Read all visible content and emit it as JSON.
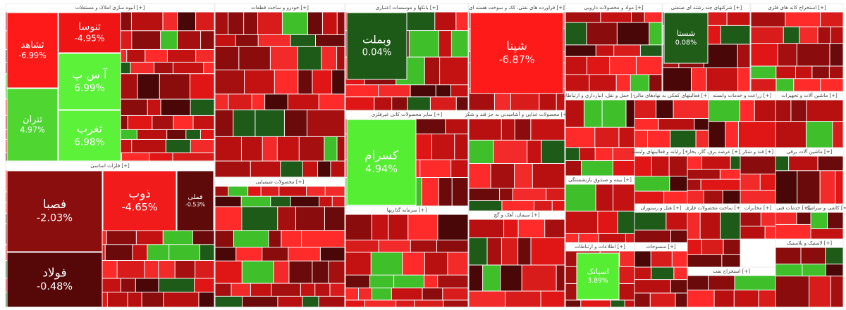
{
  "sectors": [
    {
      "title": "انبوه سازی املاک و مستغلات [+]",
      "tiles": [
        {
          "name": "ثشاهد",
          "change": "-6.99%",
          "color": "#ff1a1a"
        },
        {
          "name": "ثنوسا",
          "change": "-4.95%",
          "color": "#f01515"
        },
        {
          "name": "آ س پ",
          "change": "6.99%",
          "color": "#5cf23a"
        },
        {
          "name": "ثتران",
          "change": "4.97%",
          "color": "#4fd631"
        },
        {
          "name": "ثغرب",
          "change": "6.98%",
          "color": "#5cf23a"
        }
      ]
    },
    {
      "title": "فلزات اساسی [+]",
      "tiles": [
        {
          "name": "فصبا",
          "change": "-2.03%",
          "color": "#8b0e0e"
        },
        {
          "name": "فولاد",
          "change": "-0.48%",
          "color": "#560808"
        },
        {
          "name": "ذوب",
          "change": "-4.65%",
          "color": "#f21b1b"
        },
        {
          "name": "فملی",
          "change": "-0.53%",
          "color": "#5e0a0a"
        }
      ]
    },
    {
      "title": "خودرو و ساخت قطعات [+]",
      "tiles": []
    },
    {
      "title": "محصولات شیمیایی [+]",
      "tiles": []
    },
    {
      "title": "بانکها و موسسات اعتباری [+]",
      "tiles": [
        {
          "name": "وبملت",
          "change": "0.04%",
          "color": "#1d5a17"
        }
      ]
    },
    {
      "title": "سایر محصولات کانی غیرفلزی [+]",
      "tiles": [
        {
          "name": "کسرام",
          "change": "4.94%",
          "color": "#55ee33"
        }
      ]
    },
    {
      "title": "سرمایه گذاریها [+]",
      "tiles": []
    },
    {
      "title": "فراورده های نفتی، کک و سوخت هسته ای [+]",
      "tiles": [
        {
          "name": "شپنا",
          "change": "-6.87%",
          "color": "#ff1a1a"
        }
      ]
    },
    {
      "title": "محصولات غذایی و آشامیدنی به جز قند و شکر [+]",
      "tiles": []
    },
    {
      "title": "سیمان، آهک و گچ [+]",
      "tiles": []
    },
    {
      "title": "مواد و محصولات دارویی [+]",
      "tiles": []
    },
    {
      "title": "شرکتهای چند رشته ای صنعتی [+]",
      "tiles": [
        {
          "name": "شستا",
          "change": "0.08%",
          "color": "#1f5d19"
        }
      ]
    },
    {
      "title": "استخراج کانه های فلزی [+]",
      "tiles": []
    },
    {
      "title": "حمل و نقل، انبارداری و ارتباطات [+]",
      "tiles": []
    },
    {
      "title": "فعالیتهای کمکی به نهادهای مالی [+]",
      "tiles": []
    },
    {
      "title": "زراعت و خدمات وابسته [+]",
      "tiles": []
    },
    {
      "title": "ماشین آلات و تجهیزات [+]",
      "tiles": []
    },
    {
      "title": "بیمه و صندوق بازنشستگی [+]",
      "tiles": []
    },
    {
      "title": "اطلاعات و ارتباطات [+]",
      "tiles": [
        {
          "name": "اسیاتک",
          "change": "3.89%",
          "color": "#55ee33"
        }
      ]
    },
    {
      "title": "رایانه و فعالیتهای وابسته [+]",
      "tiles": []
    },
    {
      "title": "عرضه برق، گاز، بخار [+]",
      "tiles": []
    },
    {
      "title": "قند و شکر [+]",
      "tiles": []
    },
    {
      "title": "ماشین آلات برقی [+]",
      "tiles": []
    },
    {
      "title": "هتل و رستوران [+]",
      "tiles": []
    },
    {
      "title": "ساخت محصولات فلزی [+]",
      "tiles": []
    },
    {
      "title": "مخابرات [+]",
      "tiles": []
    },
    {
      "title": "خدمات فنی [+]",
      "tiles": []
    },
    {
      "title": "کاشی و سرامیک [+]",
      "tiles": []
    },
    {
      "title": "منسوجات [+]",
      "tiles": []
    },
    {
      "title": "استخراج نفت [+]",
      "tiles": []
    },
    {
      "title": "لاستیک و پلاستیک [+]",
      "tiles": []
    }
  ]
}
